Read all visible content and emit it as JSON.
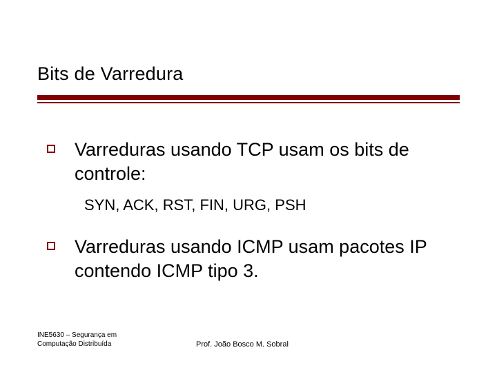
{
  "slide": {
    "title": "Bits de Varredura",
    "bullets": [
      {
        "text": "Varreduras usando TCP usam os bits de controle:",
        "sub": "SYN, ACK, RST, FIN, URG, PSH"
      },
      {
        "text": "Varreduras usando ICMP usam pacotes IP contendo ICMP tipo 3.",
        "sub": null
      }
    ],
    "footer": {
      "left_line1": "INE5630 – Segurança em",
      "left_line2": "Computação Distribuída",
      "center": "Prof. João Bosco M. Sobral"
    },
    "colors": {
      "accent": "#800000",
      "text": "#000000",
      "background": "#ffffff"
    },
    "typography": {
      "title_fontsize": 27,
      "body_fontsize": 27,
      "sub_fontsize": 22,
      "footer_fontsize": 10,
      "font_family": "Verdana"
    }
  }
}
